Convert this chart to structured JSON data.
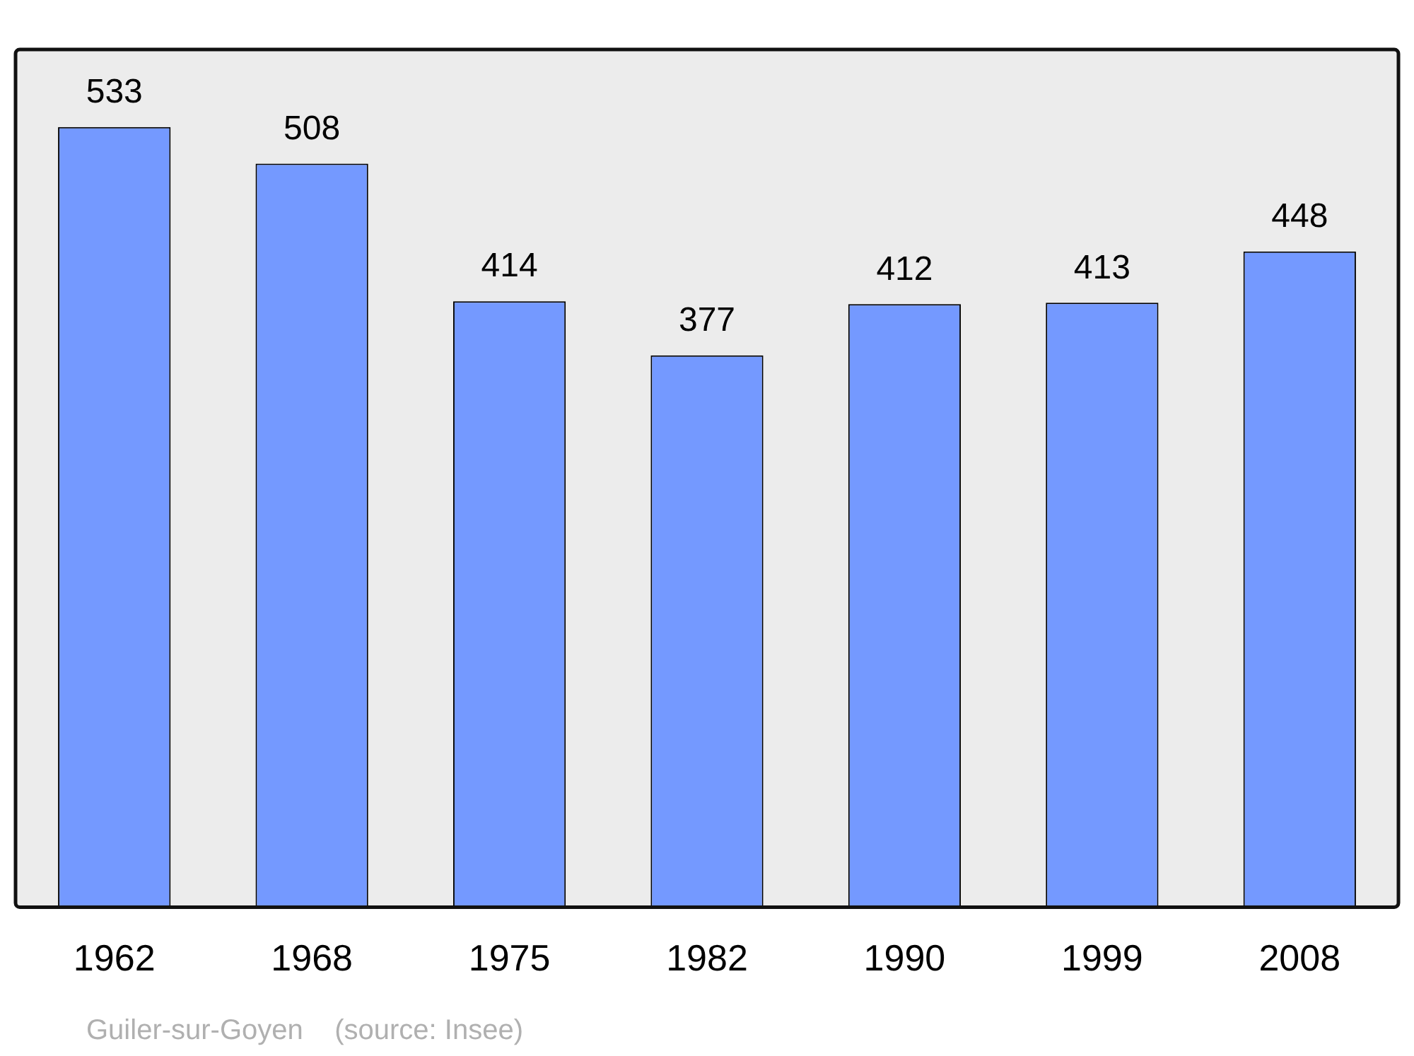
{
  "chart_data": {
    "type": "bar",
    "categories": [
      "1962",
      "1968",
      "1975",
      "1982",
      "1990",
      "1999",
      "2008"
    ],
    "values": [
      533,
      508,
      414,
      377,
      412,
      413,
      448
    ],
    "color": "#7499ff",
    "ylim": [
      0,
      586
    ],
    "data_labels": true,
    "grid": false,
    "legend": false,
    "tick_labels": "x",
    "annotations": [
      "Guiler-sur-Goyen    (source: Insee)"
    ]
  }
}
